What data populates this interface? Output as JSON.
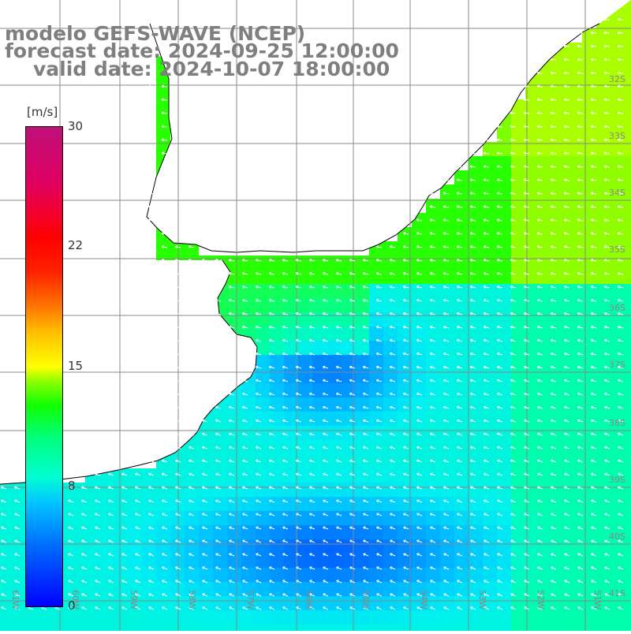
{
  "title": {
    "model": "modelo GEFS-WAVE (NCEP)",
    "forecast": "forecast date: 2024-09-25 12:00:00",
    "valid": "valid date: 2024-10-07 18:00:00"
  },
  "colorbar": {
    "unit": "[m/s]",
    "range": [
      0,
      30
    ],
    "ticks": [
      "30",
      "22",
      "15",
      "8",
      "0"
    ],
    "colors": [
      "#0000ff",
      "#00c8ff",
      "#00ff80",
      "#ffff00",
      "#ff0000",
      "#c0107a"
    ]
  },
  "map": {
    "background": "#ffffff",
    "land_outline_color": "#000000",
    "grid_color": "#888888",
    "arrow_color": "#ffffff",
    "lat_labels": [
      "32S",
      "33S",
      "34S",
      "35S",
      "36S",
      "37S",
      "38S",
      "39S",
      "40S",
      "41S"
    ],
    "lon_labels": [
      "61W",
      "60W",
      "59W",
      "58W",
      "57W",
      "56W",
      "55W",
      "54W",
      "53W",
      "52W",
      "51W"
    ],
    "wind_direction": "predominantly from the east (arrows pointing west / north-west)"
  }
}
